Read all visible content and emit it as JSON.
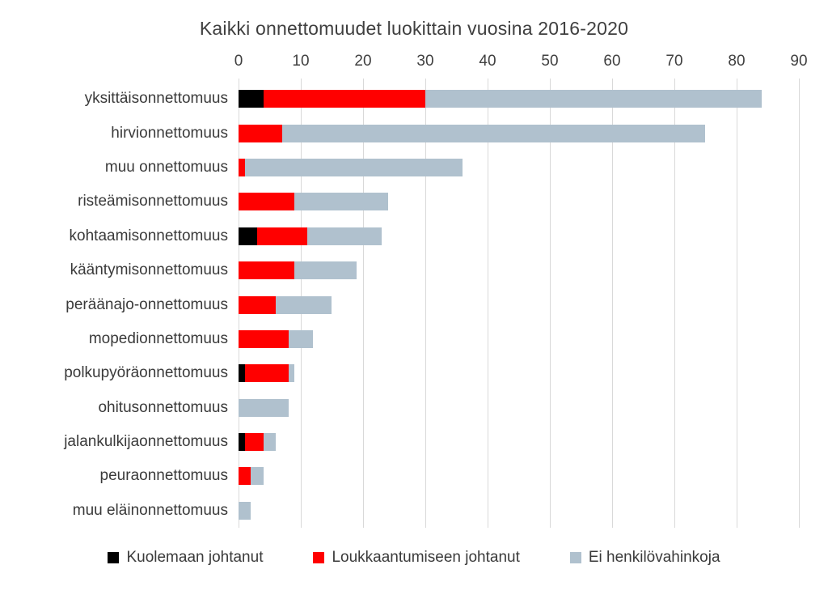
{
  "title": "Kaikki onnettomuudet luokittain vuosina 2016-2020",
  "colors": {
    "fatal": "#000000",
    "injury": "#ff0000",
    "no_injury": "#b0c1ce",
    "gridline": "#d9d9d9",
    "text": "#3f3f3f",
    "background": "#ffffff"
  },
  "chart_data": {
    "type": "bar",
    "orientation": "horizontal",
    "stacked": true,
    "grid": true,
    "legend_position": "bottom",
    "title": "Kaikki onnettomuudet luokittain vuosina 2016-2020",
    "xlabel": "",
    "ylabel": "",
    "xlim": [
      0,
      90
    ],
    "x_ticks": [
      0,
      10,
      20,
      30,
      40,
      50,
      60,
      70,
      80,
      90
    ],
    "categories": [
      "yksittäisonnettomuus",
      "hirvionnettomuus",
      "muu onnettomuus",
      "risteämisonnettomuus",
      "kohtaamisonnettomuus",
      "kääntymisonnettomuus",
      "peräänajo-onnettomuus",
      "mopedionnettomuus",
      "polkupyöräonnettomuus",
      "ohitusonnettomuus",
      "jalankulkijaonnettomuus",
      "peuraonnettomuus",
      "muu eläinonnettomuus"
    ],
    "series": [
      {
        "name": "Kuolemaan johtanut",
        "color": "#000000",
        "values": [
          4,
          0,
          0,
          0,
          3,
          0,
          0,
          0,
          1,
          0,
          1,
          0,
          0
        ]
      },
      {
        "name": "Loukkaantumiseen johtanut",
        "color": "#ff0000",
        "values": [
          26,
          7,
          1,
          9,
          8,
          9,
          6,
          8,
          7,
          0,
          3,
          2,
          0
        ]
      },
      {
        "name": "Ei henkilövahinkoja",
        "color": "#b0c1ce",
        "values": [
          54,
          68,
          35,
          15,
          12,
          10,
          9,
          4,
          1,
          8,
          2,
          2,
          2
        ]
      }
    ],
    "totals": [
      84,
      75,
      36,
      24,
      23,
      19,
      15,
      12,
      9,
      8,
      6,
      4,
      2
    ]
  }
}
